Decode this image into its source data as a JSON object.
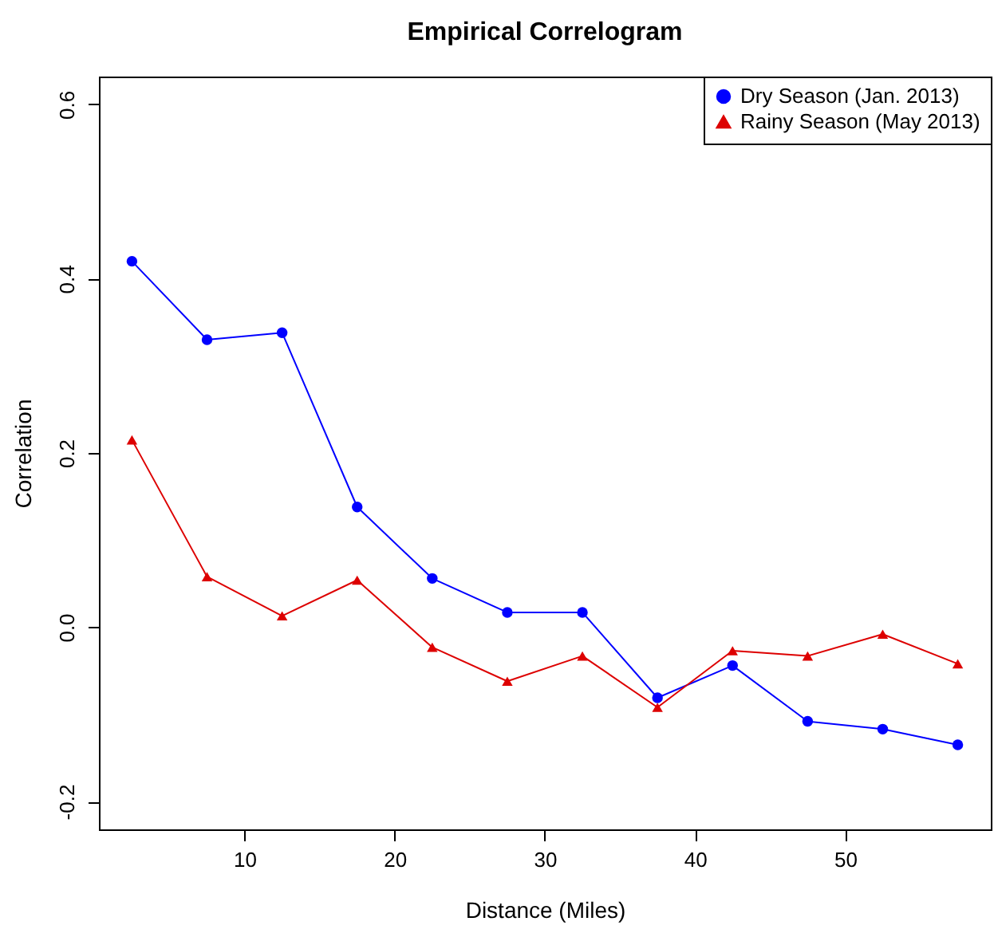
{
  "chart_data": {
    "type": "line",
    "title": "Empirical Correlogram",
    "xlabel": "Distance (Miles)",
    "ylabel": "Correlation",
    "x": [
      2.5,
      7.5,
      12.5,
      17.5,
      22.5,
      27.5,
      32.5,
      37.5,
      42.5,
      47.5,
      52.5,
      57.5
    ],
    "series": [
      {
        "name": "Dry Season (Jan. 2013)",
        "color": "#0000ff",
        "marker": "circle",
        "values": [
          0.42,
          0.33,
          0.338,
          0.138,
          0.056,
          0.017,
          0.017,
          -0.081,
          -0.044,
          -0.108,
          -0.117,
          -0.135
        ]
      },
      {
        "name": "Rainy Season (May 2013)",
        "color": "#dd0000",
        "marker": "triangle",
        "values": [
          0.215,
          0.058,
          0.013,
          0.054,
          -0.023,
          -0.062,
          -0.033,
          -0.092,
          -0.027,
          -0.033,
          -0.008,
          -0.042
        ]
      }
    ],
    "xlim": [
      0.3,
      59.7
    ],
    "xticks": [
      10,
      20,
      30,
      40,
      50
    ],
    "ylim": [
      -0.232,
      0.632
    ],
    "yticks": [
      -0.2,
      {
        "value": 0,
        "label": "0.0"
      },
      0.2,
      0.4,
      0.6
    ],
    "grid": false,
    "legend": "top right",
    "line_style": "solid"
  }
}
